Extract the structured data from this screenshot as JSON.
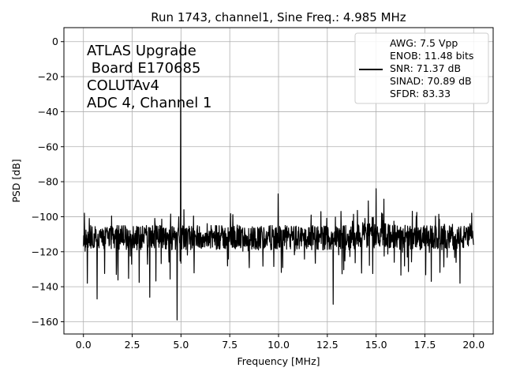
{
  "chart_data": {
    "type": "line",
    "title": "Run 1743, channel1, Sine Freq.: 4.985 MHz",
    "xlabel": "Frequency [MHz]",
    "ylabel": "PSD [dB]",
    "xlim": [
      -1.0,
      21.0
    ],
    "ylim": [
      -167,
      8
    ],
    "grid": true,
    "x_ticks": [
      0.0,
      2.5,
      5.0,
      7.5,
      10.0,
      12.5,
      15.0,
      17.5,
      20.0
    ],
    "x_tick_labels": [
      "0.0",
      "2.5",
      "5.0",
      "7.5",
      "10.0",
      "12.5",
      "15.0",
      "17.5",
      "20.0"
    ],
    "y_ticks": [
      0,
      -20,
      -40,
      -60,
      -80,
      -100,
      -120,
      -140,
      -160
    ],
    "y_tick_labels": [
      "0",
      "−20",
      "−40",
      "−60",
      "−80",
      "−100",
      "−120",
      "−140",
      "−160"
    ],
    "annotation_lines": [
      "ATLAS Upgrade",
      " Board E170685",
      "COLUTAv4",
      "ADC 4, Channel 1"
    ],
    "legend": {
      "position": "upper right",
      "lines": [
        "AWG: 7.5 Vpp",
        "ENOB: 11.48 bits",
        "SNR: 71.37 dB",
        "SINAD: 70.89 dB",
        "SFDR: 83.33"
      ]
    },
    "series": [
      {
        "color": "#000000",
        "noise_floor_db": -112,
        "peaks": [
          {
            "x": 0.05,
            "y": -98
          },
          {
            "x": 0.3,
            "y": -101
          },
          {
            "x": 4.985,
            "y": 0
          },
          {
            "x": 5.15,
            "y": -96
          },
          {
            "x": 9.98,
            "y": -87
          },
          {
            "x": 14.6,
            "y": -91
          },
          {
            "x": 15.0,
            "y": -84
          },
          {
            "x": 15.4,
            "y": -90
          },
          {
            "x": 19.9,
            "y": -98
          }
        ],
        "dips": [
          {
            "x": 0.2,
            "y": -138
          },
          {
            "x": 0.7,
            "y": -147
          },
          {
            "x": 3.4,
            "y": -146
          },
          {
            "x": 4.8,
            "y": -159
          },
          {
            "x": 12.8,
            "y": -150
          },
          {
            "x": 19.3,
            "y": -138
          }
        ]
      }
    ]
  }
}
